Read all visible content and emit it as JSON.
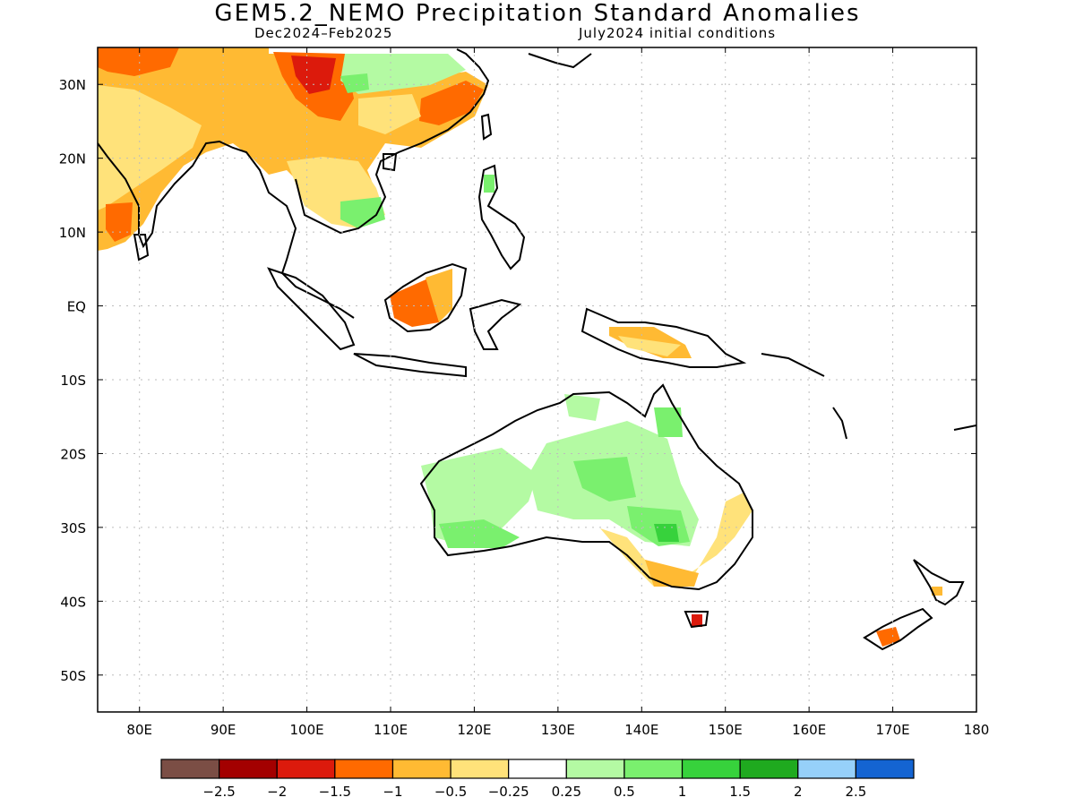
{
  "title": "GEM5.2_NEMO Precipitation Standard Anomalies",
  "subtitle_left": "Dec2024–Feb2025",
  "subtitle_right": "July2024 initial conditions",
  "map": {
    "lon_range": [
      75,
      180
    ],
    "lat_range": [
      -55,
      35
    ],
    "lon_labels": [
      "80E",
      "90E",
      "100E",
      "110E",
      "120E",
      "130E",
      "140E",
      "150E",
      "160E",
      "170E",
      "180"
    ],
    "lat_labels": [
      "30N",
      "20N",
      "10N",
      "EQ",
      "10S",
      "20S",
      "30S",
      "40S",
      "50S"
    ]
  },
  "legend": {
    "colors": [
      "#7b4e45",
      "#a30000",
      "#dc1a0c",
      "#ff6a00",
      "#ffba33",
      "#ffe27a",
      "#ffffff",
      "#b4faa3",
      "#7af06e",
      "#37d23c",
      "#1faa1f",
      "#96d0f9",
      "#1464d2"
    ],
    "labels": [
      "−2.5",
      "−2",
      "−1.5",
      "−1",
      "−0.5",
      "−0.25",
      "0.25",
      "0.5",
      "1",
      "1.5",
      "2",
      "2.5"
    ]
  }
}
